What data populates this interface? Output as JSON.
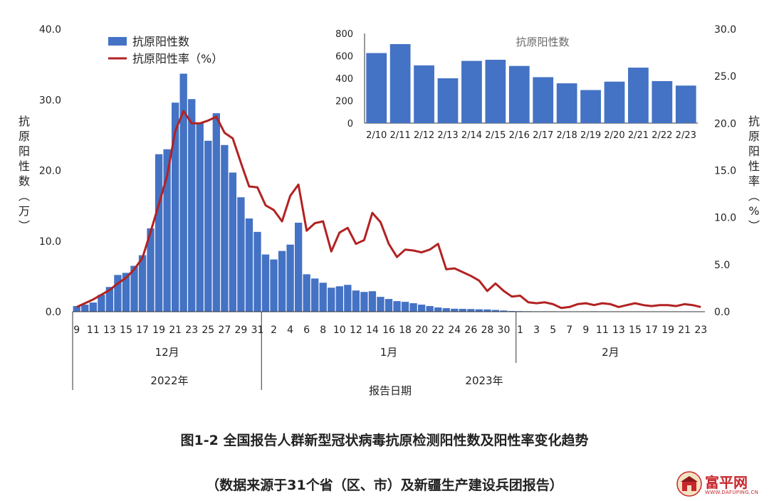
{
  "chart_data": {
    "type": "bar+line",
    "legend": {
      "placement": "top-left",
      "bar_label": "抗原阳性数",
      "line_label": "抗原阳性率（%）"
    },
    "left_axis": {
      "label": "抗原阳性数（万）",
      "ylim": [
        0,
        40
      ],
      "ticks": [
        "0.0",
        "10.0",
        "20.0",
        "30.0",
        "40.0"
      ]
    },
    "right_axis": {
      "label": "抗原阳性率（%）",
      "ylim": [
        0,
        30
      ],
      "ticks": [
        "0.0",
        "5.0",
        "10.0",
        "15.0",
        "20.0",
        "25.0",
        "30.0"
      ]
    },
    "x_tick_labels": [
      "9",
      "11",
      "13",
      "15",
      "17",
      "19",
      "21",
      "23",
      "25",
      "27",
      "29",
      "31",
      "2",
      "4",
      "6",
      "8",
      "10",
      "12",
      "14",
      "16",
      "18",
      "20",
      "22",
      "24",
      "26",
      "28",
      "30",
      "1",
      "3",
      "5",
      "7",
      "9",
      "11",
      "13",
      "15",
      "17",
      "19",
      "21",
      "23"
    ],
    "month_labels": [
      "12月",
      "1月",
      "2月"
    ],
    "year_labels": [
      "2022年",
      "2023年"
    ],
    "xlabel": "报告日期",
    "series": [
      {
        "name": "抗原阳性数",
        "type": "bar",
        "color": "#4472C4",
        "values": [
          0.8,
          1.0,
          1.3,
          2.4,
          3.5,
          5.2,
          5.5,
          6.5,
          8.0,
          11.8,
          22.3,
          23.0,
          29.6,
          33.7,
          30.1,
          26.7,
          24.2,
          28.1,
          23.6,
          19.7,
          16.2,
          13.2,
          11.3,
          8.1,
          7.4,
          8.6,
          9.5,
          12.6,
          5.3,
          4.7,
          4.1,
          3.4,
          3.6,
          3.8,
          3.0,
          2.8,
          2.9,
          2.1,
          1.8,
          1.5,
          1.4,
          1.2,
          1.0,
          0.8,
          0.6,
          0.5,
          0.42,
          0.4,
          0.38,
          0.34,
          0.32,
          0.25,
          0.17,
          0.1,
          0.08,
          0.07,
          0.06,
          0.06,
          0.06,
          0.05,
          0.05,
          0.05,
          0.05,
          0.06,
          0.05,
          0.05,
          0.04,
          0.04,
          0.04,
          0.05,
          0.04,
          0.04,
          0.03,
          0.03,
          0.03,
          0.03,
          0.03
        ]
      },
      {
        "name": "抗原阳性率（%）",
        "type": "line",
        "axis": "right",
        "color": "#B22222",
        "values": [
          0.5,
          0.9,
          1.3,
          1.8,
          2.3,
          3.0,
          3.6,
          4.5,
          5.7,
          8.5,
          11.4,
          14.4,
          19.2,
          21.3,
          20.0,
          20.0,
          20.3,
          20.7,
          19.0,
          18.4,
          15.8,
          13.3,
          13.2,
          11.3,
          10.8,
          9.6,
          12.3,
          13.5,
          8.6,
          9.4,
          9.6,
          6.4,
          8.4,
          8.9,
          7.2,
          7.6,
          10.5,
          9.5,
          7.2,
          5.8,
          6.6,
          6.5,
          6.3,
          6.6,
          7.2,
          4.5,
          4.6,
          4.2,
          3.8,
          3.3,
          2.2,
          3.0,
          2.2,
          1.6,
          1.7,
          1.0,
          0.9,
          1.0,
          0.8,
          0.4,
          0.5,
          0.8,
          0.9,
          0.7,
          0.9,
          0.8,
          0.5,
          0.7,
          0.9,
          0.7,
          0.6,
          0.7,
          0.7,
          0.6,
          0.8,
          0.7,
          0.5
        ]
      }
    ],
    "inset": {
      "type": "bar",
      "title": "抗原阳性数",
      "categories": [
        "2/10",
        "2/11",
        "2/12",
        "2/13",
        "2/14",
        "2/15",
        "2/16",
        "2/17",
        "2/18",
        "2/19",
        "2/20",
        "2/21",
        "2/22",
        "2/23"
      ],
      "values": [
        625,
        705,
        515,
        400,
        555,
        565,
        510,
        410,
        355,
        295,
        370,
        495,
        375,
        335
      ],
      "ylim": [
        0,
        800
      ],
      "ticks": [
        "0",
        "200",
        "400",
        "600",
        "800"
      ],
      "color": "#4472C4"
    }
  },
  "caption": {
    "title": "图1-2 全国报告人群新型冠状病毒抗原检测阳性数及阳性率变化趋势",
    "source": "（数据来源于31个省（区、市）及新疆生产建设兵团报告）"
  },
  "watermark": {
    "text": "富平网",
    "url": "WWW.DAFUPING.CN"
  }
}
